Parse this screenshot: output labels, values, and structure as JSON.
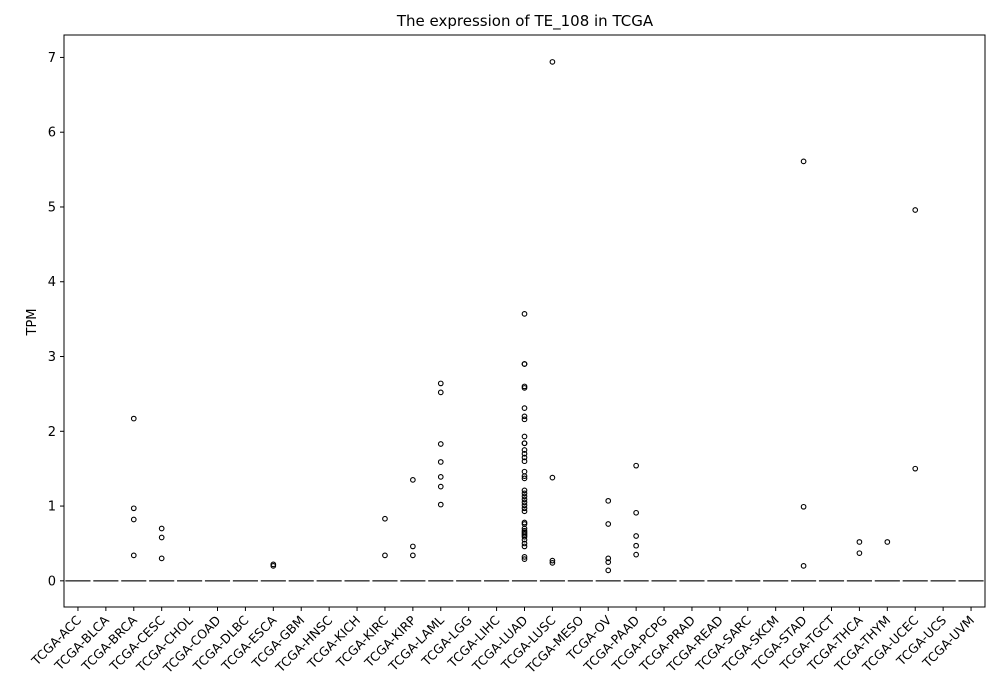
{
  "chart_data": {
    "type": "box",
    "title": "The expression of TE_108 in TCGA",
    "xlabel": "",
    "ylabel": "TPM",
    "ylim": [
      -0.35,
      7.3
    ],
    "yticks": [
      0,
      1,
      2,
      3,
      4,
      5,
      6,
      7
    ],
    "grid": false,
    "categories": [
      "TCGA-ACC",
      "TCGA-BLCA",
      "TCGA-BRCA",
      "TCGA-CESC",
      "TCGA-CHOL",
      "TCGA-COAD",
      "TCGA-DLBC",
      "TCGA-ESCA",
      "TCGA-GBM",
      "TCGA-HNSC",
      "TCGA-KICH",
      "TCGA-KIRC",
      "TCGA-KIRP",
      "TCGA-LAML",
      "TCGA-LGG",
      "TCGA-LIHC",
      "TCGA-LUAD",
      "TCGA-LUSC",
      "TCGA-MESO",
      "TCGA-OV",
      "TCGA-PAAD",
      "TCGA-PCPG",
      "TCGA-PRAD",
      "TCGA-READ",
      "TCGA-SARC",
      "TCGA-SKCM",
      "TCGA-STAD",
      "TCGA-TGCT",
      "TCGA-THCA",
      "TCGA-THYM",
      "TCGA-UCEC",
      "TCGA-UCS",
      "TCGA-UVM"
    ],
    "medians": [
      0,
      0,
      0,
      0,
      0,
      0,
      0,
      0,
      0,
      0,
      0,
      0,
      0,
      0,
      0,
      0,
      0,
      0,
      0,
      0,
      0,
      0,
      0,
      0,
      0,
      0,
      0,
      0,
      0,
      0,
      0,
      0,
      0
    ],
    "outliers": [
      [],
      [],
      [
        2.17,
        0.97,
        0.82,
        0.34
      ],
      [
        0.7,
        0.58,
        0.3
      ],
      [],
      [],
      [],
      [
        0.22,
        0.2
      ],
      [],
      [],
      [],
      [
        0.83,
        0.34
      ],
      [
        1.35,
        0.46,
        0.34
      ],
      [
        2.64,
        2.52,
        1.83,
        1.59,
        1.39,
        1.26,
        1.02
      ],
      [],
      [],
      [
        3.57,
        2.9,
        2.9,
        2.6,
        2.58,
        2.31,
        2.2,
        2.16,
        1.93,
        1.84,
        1.84,
        1.75,
        1.7,
        1.65,
        1.6,
        1.46,
        1.4,
        1.37,
        1.21,
        1.17,
        1.13,
        1.09,
        1.05,
        1.01,
        0.97,
        0.93,
        0.78,
        0.76,
        0.7,
        0.67,
        0.65,
        0.63,
        0.61,
        0.59,
        0.55,
        0.5,
        0.46,
        0.32,
        0.29
      ],
      [
        6.94,
        1.38,
        0.27,
        0.24
      ],
      [],
      [
        1.07,
        0.76,
        0.3,
        0.25,
        0.14
      ],
      [
        1.54,
        0.91,
        0.6,
        0.47,
        0.35
      ],
      [],
      [],
      [],
      [],
      [],
      [
        5.61,
        0.99,
        0.2
      ],
      [],
      [
        0.52,
        0.37
      ],
      [
        0.52
      ],
      [
        4.96,
        1.5
      ],
      [],
      []
    ]
  }
}
